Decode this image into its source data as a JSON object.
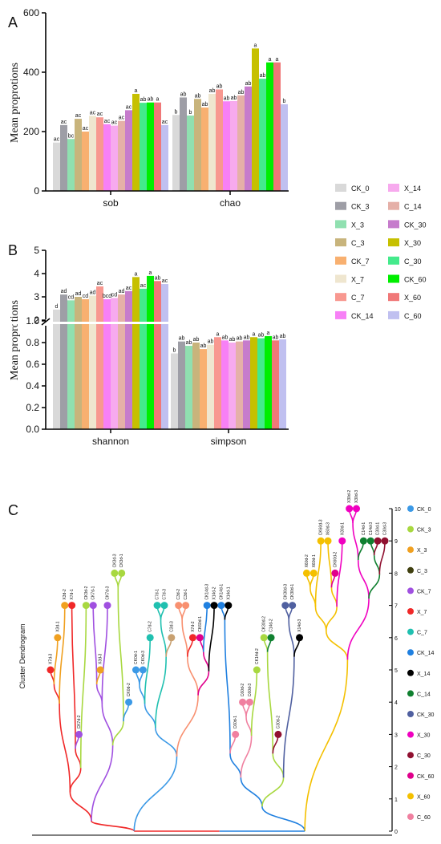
{
  "colors": {
    "CK_0": "#d9d9d9",
    "CK_3": "#9e9ea6",
    "X_3": "#90e0b0",
    "C_3": "#c8b47c",
    "CK_7": "#f8b070",
    "X_7": "#efe6cf",
    "C_7": "#f89890",
    "CK_14": "#f780f6",
    "X_14": "#f7aaee",
    "C_14": "#e5b0a8",
    "CK_30": "#c67ccc",
    "X_30": "#c6c000",
    "C_30": "#44ea8c",
    "CK_60": "#00ee00",
    "X_60": "#f07878",
    "C_60": "#c0c0f0"
  },
  "legend_top": {
    "left": [
      "CK_0",
      "CK_3",
      "X_3",
      "C_3",
      "CK_7",
      "X_7",
      "C_7",
      "CK_14"
    ],
    "right": [
      "X_14",
      "C_14",
      "CK_30",
      "X_30",
      "C_30",
      "CK_60",
      "X_60",
      "C_60"
    ]
  },
  "chart_data": [
    {
      "panel_label": "A",
      "type": "bar",
      "ylabel": "Mean proprotions",
      "ylim": [
        0,
        600
      ],
      "yticks": [
        "0",
        "200",
        "400",
        "600"
      ],
      "groups": [
        {
          "name": "sob",
          "values": [
            163,
            222,
            175,
            243,
            200,
            253,
            248,
            225,
            220,
            236,
            272,
            327,
            297,
            298,
            298,
            222
          ],
          "letters": [
            "ac",
            "ac",
            "bc",
            "ac",
            "ac",
            "ac",
            "ac",
            "ac",
            "ac",
            "ac",
            "ac",
            "a",
            "ab",
            "ab",
            "a",
            "ac"
          ]
        },
        {
          "name": "chao",
          "values": [
            256,
            315,
            254,
            310,
            281,
            327,
            342,
            302,
            303,
            322,
            352,
            480,
            378,
            433,
            433,
            292
          ],
          "letters": [
            "b",
            "ab",
            "b",
            "ab",
            "ab",
            "ab",
            "ab",
            "ab",
            "ab",
            "ab",
            "ab",
            "a",
            "ab",
            "a",
            "a",
            "b"
          ]
        }
      ]
    },
    {
      "panel_label": "B",
      "type": "bar",
      "ylabel": "Mean proprotions",
      "axis_break": true,
      "yticks_lower": [
        "0.0",
        "0.2",
        "0.4",
        "0.6",
        "0.8",
        "1.0"
      ],
      "yticks_upper": [
        "2",
        "3",
        "4",
        "5"
      ],
      "groups": [
        {
          "name": "shannon",
          "values": [
            2.45,
            3.1,
            2.85,
            3.0,
            2.9,
            3.05,
            3.45,
            2.9,
            2.95,
            3.1,
            3.25,
            3.85,
            3.35,
            3.9,
            3.68,
            3.55
          ],
          "letters": [
            "d",
            "ad",
            "cd",
            "ad",
            "cd",
            "ad",
            "ac",
            "bcd",
            "cd",
            "ad",
            "ac",
            "a",
            "ac",
            "a",
            "ab",
            "ac"
          ]
        },
        {
          "name": "simpson",
          "values": [
            0.7,
            0.81,
            0.77,
            0.8,
            0.74,
            0.78,
            0.85,
            0.82,
            0.8,
            0.81,
            0.82,
            0.85,
            0.84,
            0.86,
            0.82,
            0.83
          ],
          "letters": [
            "b",
            "ab",
            "ab",
            "ab",
            "ab",
            "ab",
            "a",
            "ab",
            "ab",
            "ab",
            "ab",
            "a",
            "ab",
            "a",
            "ab",
            "ab"
          ]
        }
      ]
    },
    {
      "panel_label": "C",
      "type": "dendrogram",
      "ylabel": "Cluster Dendrogram",
      "yticks": [
        "0",
        "1",
        "2",
        "3",
        "4",
        "5",
        "6",
        "7",
        "8",
        "9",
        "10"
      ],
      "legend": [
        "CK_0",
        "CK_3",
        "X_3",
        "C_3",
        "CK_7",
        "X_7",
        "C_7",
        "CK_14",
        "X_14",
        "C_14",
        "CK_30",
        "X_30",
        "C_30",
        "CK_60",
        "X_60",
        "C_60"
      ],
      "legend_colors": [
        "#3b99e6",
        "#a8d840",
        "#f0a020",
        "#404010",
        "#a050e0",
        "#f02828",
        "#20c0b0",
        "#2080e0",
        "#000000",
        "#108030",
        "#5060a0",
        "#f000c0",
        "#901030",
        "#e0008c",
        "#f4c000",
        "#f080a0"
      ],
      "leaves": [
        {
          "label": "X7d-3",
          "color": "#f02828",
          "h": 5
        },
        {
          "label": "X3d-1",
          "color": "#f0a020",
          "h": 6
        },
        {
          "label": "X3d-2",
          "color": "#f0a020",
          "h": 7
        },
        {
          "label": "X7d-1",
          "color": "#f02828",
          "h": 7
        },
        {
          "label": "CK7d-2",
          "color": "#a050e0",
          "h": 3
        },
        {
          "label": "CK3d-2",
          "color": "#a8d840",
          "h": 7
        },
        {
          "label": "CK7d-1",
          "color": "#a050e0",
          "h": 7
        },
        {
          "label": "X3d-3",
          "color": "#f0a020",
          "h": 5
        },
        {
          "label": "CK7d-3",
          "color": "#a050e0",
          "h": 7
        },
        {
          "label": "CK3d-3",
          "color": "#a8d840",
          "h": 8
        },
        {
          "label": "CK3d-1",
          "color": "#a8d840",
          "h": 8
        },
        {
          "label": "CK0d-2",
          "color": "#3b99e6",
          "h": 4
        },
        {
          "label": "CK0d-1",
          "color": "#3b99e6",
          "h": 5
        },
        {
          "label": "CK0d-3",
          "color": "#3b99e6",
          "h": 5
        },
        {
          "label": "C7d-2",
          "color": "#20c0b0",
          "h": 6
        },
        {
          "label": "C7d-1",
          "color": "#20c0b0",
          "h": 7
        },
        {
          "label": "C7d-3",
          "color": "#20c0b0",
          "h": 7
        },
        {
          "label": "C3d-3",
          "color": "#c8a070",
          "h": 6
        },
        {
          "label": "C3d-2",
          "color": "#f89070",
          "h": 7
        },
        {
          "label": "C3d-1",
          "color": "#f89070",
          "h": 7
        },
        {
          "label": "X7d-2",
          "color": "#f02828",
          "h": 6
        },
        {
          "label": "CK60d-1",
          "color": "#e0008c",
          "h": 6
        },
        {
          "label": "CK14d-3",
          "color": "#2080e0",
          "h": 7
        },
        {
          "label": "X14d-2",
          "color": "#000000",
          "h": 7
        },
        {
          "label": "CK14d-1",
          "color": "#2080e0",
          "h": 7
        },
        {
          "label": "X14d-1",
          "color": "#000000",
          "h": 7
        },
        {
          "label": "C60d-1",
          "color": "#f080a0",
          "h": 3
        },
        {
          "label": "C60d-2",
          "color": "#f080a0",
          "h": 4
        },
        {
          "label": "C60d-3",
          "color": "#f080a0",
          "h": 4
        },
        {
          "label": "CK14d-2",
          "color": "#a8d840",
          "h": 5
        },
        {
          "label": "CK30d-2",
          "color": "#a8d840",
          "h": 6
        },
        {
          "label": "C14d-2",
          "color": "#108030",
          "h": 6
        },
        {
          "label": "C30d-2",
          "color": "#901030",
          "h": 3
        },
        {
          "label": "CK30d-3",
          "color": "#5060a0",
          "h": 7
        },
        {
          "label": "CK30d-1",
          "color": "#5060a0",
          "h": 7
        },
        {
          "label": "X14d-3",
          "color": "#000000",
          "h": 6
        },
        {
          "label": "X60d-2",
          "color": "#f4c000",
          "h": 8
        },
        {
          "label": "X60d-1",
          "color": "#f4c000",
          "h": 8
        },
        {
          "label": "CK60d-3",
          "color": "#f4c000",
          "h": 9
        },
        {
          "label": "X60d-3",
          "color": "#f4c000",
          "h": 9
        },
        {
          "label": "CK60d-2",
          "color": "#e0008c",
          "h": 8
        },
        {
          "label": "X30d-1",
          "color": "#f000c0",
          "h": 9
        },
        {
          "label": "X30d-2",
          "color": "#f000c0",
          "h": 10
        },
        {
          "label": "X30d-3",
          "color": "#f000c0",
          "h": 10
        },
        {
          "label": "C14d-1",
          "color": "#108030",
          "h": 9
        },
        {
          "label": "C14d-3",
          "color": "#108030",
          "h": 9
        },
        {
          "label": "C30d-1",
          "color": "#901030",
          "h": 9
        },
        {
          "label": "C30d-3",
          "color": "#901030",
          "h": 9
        }
      ]
    }
  ]
}
